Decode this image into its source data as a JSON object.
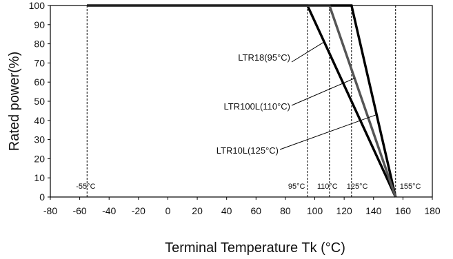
{
  "chart_data": {
    "type": "line",
    "xlabel": "Terminal Temperature Tk (°C)",
    "ylabel": "Rated power(%)",
    "xlim": [
      -80,
      180
    ],
    "ylim": [
      0,
      100
    ],
    "x_ticks": [
      -80,
      -60,
      -40,
      -20,
      0,
      20,
      40,
      60,
      80,
      100,
      120,
      140,
      160,
      180
    ],
    "y_ticks": [
      0,
      10,
      20,
      30,
      40,
      50,
      60,
      70,
      80,
      90,
      100
    ],
    "grid": false,
    "series": [
      {
        "name": "LTR18(95°C)",
        "color": "#000000",
        "x": [
          -55,
          95,
          155
        ],
        "y": [
          100,
          100,
          0
        ]
      },
      {
        "name": "LTR100L(110°C)",
        "color": "#555555",
        "x": [
          -55,
          110,
          155
        ],
        "y": [
          100,
          100,
          0
        ]
      },
      {
        "name": "LTR10L(125°C)",
        "color": "#000000",
        "x": [
          -55,
          125,
          155
        ],
        "y": [
          100,
          100,
          0
        ]
      }
    ],
    "reference_lines": [
      {
        "x": -55,
        "label": "-55°C"
      },
      {
        "x": 95,
        "label": "95°C"
      },
      {
        "x": 110,
        "label": "110°C"
      },
      {
        "x": 125,
        "label": "125°C"
      },
      {
        "x": 155,
        "label": "155°C"
      }
    ],
    "annotations": [
      {
        "text": "LTR18(95°C)",
        "series": 0
      },
      {
        "text": "LTR100L(110°C)",
        "series": 1
      },
      {
        "text": "LTR10L(125°C)",
        "series": 2
      }
    ]
  }
}
